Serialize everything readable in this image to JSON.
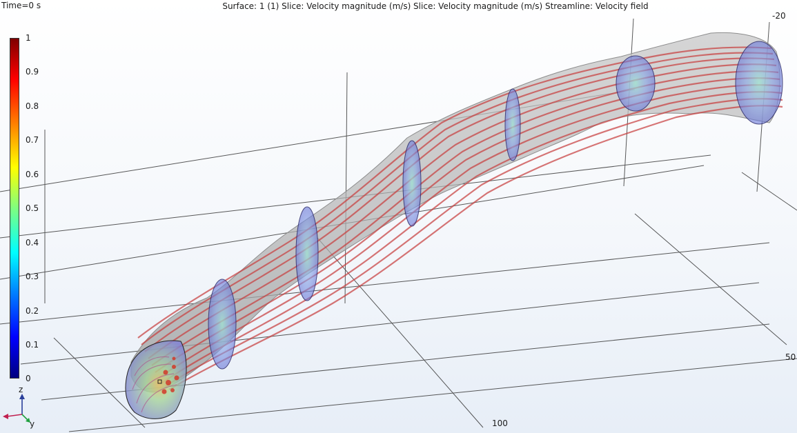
{
  "header": {
    "time_label": "Time=0 s",
    "plot_title": "Surface: 1 (1)  Slice: Velocity magnitude (m/s)  Slice: Velocity magnitude (m/s)  Streamline: Velocity field"
  },
  "axis_ticks": {
    "x_minus20": "-20",
    "x_50": "50",
    "x_100": "100"
  },
  "colorbar": {
    "labels": [
      "1",
      "0.9",
      "0.8",
      "0.7",
      "0.6",
      "0.5",
      "0.4",
      "0.3",
      "0.2",
      "0.1",
      "0"
    ],
    "min": 0,
    "max": 1
  },
  "triad": {
    "z": "z",
    "y": "y"
  },
  "colors": {
    "vessel_surface": "#a9a9a9",
    "streamline": "#c84040",
    "slice_disc": "#6e72d8",
    "grid_line": "#3a3a3a"
  }
}
